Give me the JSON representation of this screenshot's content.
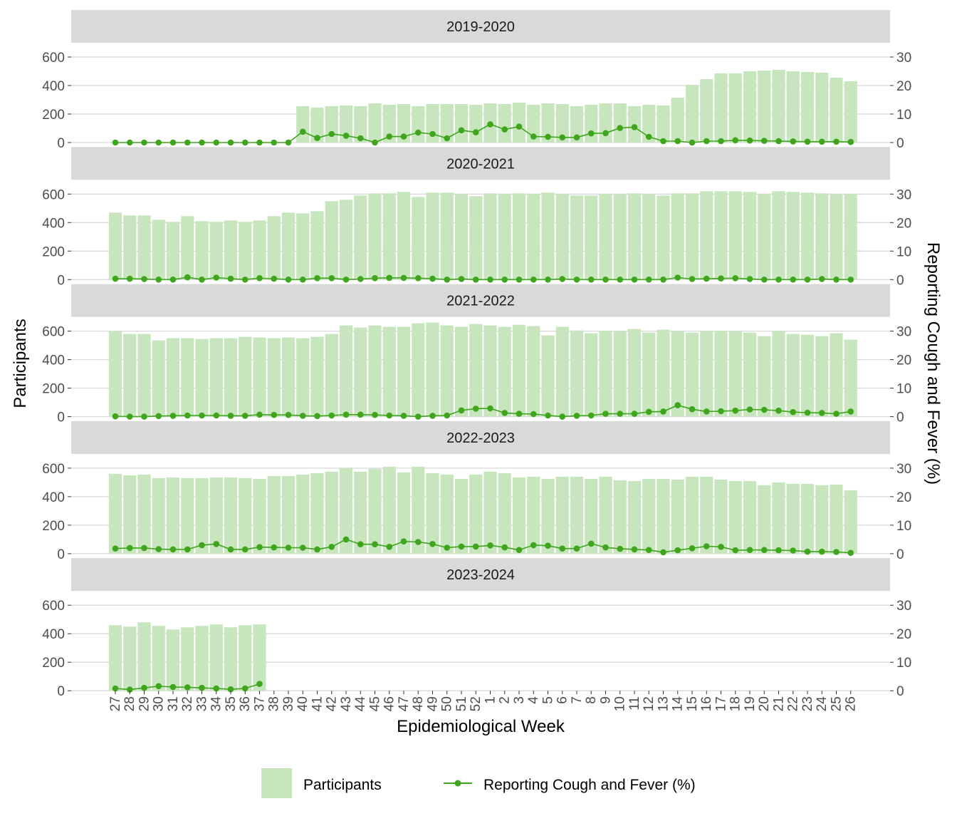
{
  "chart_data": {
    "type": "bar+line",
    "facet_label": "season",
    "x_label": "Epidemiological Week",
    "y_left_label": "Participants",
    "y_right_label": "Reporting Cough and Fever (%)",
    "y_left_ticks": [
      0,
      200,
      400,
      600
    ],
    "y_right_ticks": [
      0,
      10,
      20,
      30
    ],
    "y_left_range": [
      0,
      700
    ],
    "y_right_range": [
      0,
      35
    ],
    "weeks": [
      "27",
      "28",
      "29",
      "30",
      "31",
      "32",
      "33",
      "34",
      "35",
      "36",
      "37",
      "38",
      "39",
      "40",
      "41",
      "42",
      "43",
      "44",
      "45",
      "46",
      "47",
      "48",
      "49",
      "50",
      "51",
      "52",
      "1",
      "2",
      "3",
      "4",
      "5",
      "6",
      "7",
      "8",
      "9",
      "10",
      "11",
      "12",
      "13",
      "14",
      "15",
      "16",
      "17",
      "18",
      "19",
      "20",
      "21",
      "22",
      "23",
      "24",
      "25",
      "26"
    ],
    "legend": {
      "participants": "Participants",
      "cough_fever": "Reporting Cough and Fever (%)"
    },
    "colors": {
      "bar": "#c7e6bd",
      "line": "#3ea51c",
      "strip": "#d9d9d9",
      "grid": "#d9d9d9"
    },
    "panels": [
      {
        "season": "2019-2020",
        "participants": [
          0,
          0,
          0,
          0,
          0,
          0,
          0,
          0,
          0,
          0,
          0,
          0,
          0,
          255,
          245,
          255,
          260,
          255,
          275,
          265,
          270,
          255,
          270,
          270,
          270,
          265,
          275,
          270,
          280,
          265,
          275,
          270,
          255,
          265,
          275,
          275,
          255,
          265,
          260,
          315,
          405,
          445,
          485,
          485,
          500,
          505,
          510,
          500,
          495,
          490,
          455,
          430
        ],
        "cough_fever_pct": [
          0,
          0,
          0,
          0,
          0,
          0,
          0,
          0,
          0,
          0,
          0,
          0,
          0,
          3.8,
          1.6,
          3,
          2.4,
          1.5,
          0,
          2.1,
          2.1,
          3.5,
          3,
          1.5,
          4.3,
          3.6,
          6.4,
          4.6,
          5.6,
          2.1,
          2,
          1.8,
          1.8,
          3.2,
          3.3,
          5.1,
          5.4,
          2,
          0.5,
          0.5,
          0,
          0.5,
          0.5,
          0.8,
          0.7,
          0.6,
          0.5,
          0.4,
          0.3,
          0.3,
          0.3,
          0.2
        ]
      },
      {
        "season": "2020-2021",
        "participants": [
          470,
          450,
          450,
          420,
          405,
          445,
          410,
          405,
          415,
          405,
          415,
          445,
          470,
          465,
          480,
          550,
          560,
          590,
          605,
          605,
          615,
          580,
          610,
          610,
          600,
          585,
          605,
          600,
          605,
          600,
          610,
          600,
          590,
          590,
          600,
          600,
          605,
          600,
          590,
          605,
          605,
          620,
          620,
          620,
          615,
          600,
          620,
          615,
          610,
          605,
          600,
          600
        ],
        "cough_fever_pct": [
          0.3,
          0.3,
          0.2,
          0,
          0,
          0.8,
          0,
          0.7,
          0.3,
          0,
          0.5,
          0.3,
          0,
          0,
          0.5,
          0.5,
          0,
          0.2,
          0.5,
          0.6,
          0.6,
          0.5,
          0.3,
          0,
          0.2,
          0,
          0,
          0,
          0,
          0,
          0,
          0.2,
          0,
          0,
          0,
          0,
          0,
          0,
          0,
          0.7,
          0.2,
          0.3,
          0.4,
          0.5,
          0.2,
          0,
          0,
          0,
          0,
          0.2,
          0,
          0
        ]
      },
      {
        "season": "2021-2022",
        "participants": [
          600,
          580,
          580,
          535,
          550,
          550,
          545,
          550,
          550,
          560,
          555,
          550,
          555,
          550,
          560,
          580,
          640,
          625,
          640,
          630,
          630,
          655,
          660,
          640,
          630,
          650,
          640,
          630,
          645,
          635,
          570,
          630,
          605,
          585,
          600,
          600,
          615,
          590,
          610,
          600,
          590,
          600,
          600,
          600,
          590,
          565,
          600,
          580,
          575,
          565,
          585,
          540
        ],
        "cough_fever_pct": [
          0.1,
          0,
          0,
          0.2,
          0.3,
          0.4,
          0.4,
          0.4,
          0.3,
          0.3,
          0.7,
          0.6,
          0.6,
          0.3,
          0.2,
          0.4,
          0.7,
          0.7,
          0.6,
          0.4,
          0.3,
          0,
          0.3,
          0.4,
          2.2,
          2.8,
          2.9,
          1.3,
          1,
          0.9,
          0.4,
          0,
          0.3,
          0.4,
          1,
          1,
          1,
          1.7,
          1.8,
          4,
          2.6,
          1.8,
          1.9,
          2.1,
          2.5,
          2.4,
          2.1,
          1.6,
          1.4,
          1.3,
          1,
          1.8
        ]
      },
      {
        "season": "2022-2023",
        "participants": [
          560,
          550,
          555,
          530,
          535,
          530,
          530,
          535,
          535,
          530,
          525,
          545,
          545,
          555,
          565,
          575,
          600,
          575,
          595,
          610,
          570,
          610,
          565,
          555,
          525,
          555,
          575,
          565,
          535,
          540,
          525,
          540,
          540,
          525,
          540,
          515,
          510,
          525,
          525,
          520,
          540,
          540,
          520,
          510,
          510,
          480,
          500,
          490,
          490,
          480,
          485,
          445
        ],
        "cough_fever_pct": [
          1.8,
          2,
          2,
          1.6,
          1.5,
          1.5,
          3,
          3.4,
          1.5,
          1.5,
          2.3,
          2.2,
          2.1,
          2.1,
          1.5,
          2.4,
          5,
          3.3,
          3.3,
          2.4,
          4.3,
          4.1,
          3.4,
          2.1,
          2.5,
          2.5,
          2.9,
          2.2,
          1.3,
          3,
          2.8,
          1.8,
          1.8,
          3.5,
          2.2,
          1.7,
          1.5,
          1.3,
          0.5,
          1.2,
          1.9,
          2.6,
          2.4,
          1.2,
          1.3,
          1.3,
          1.2,
          1.1,
          0.7,
          0.7,
          0.6,
          0.3
        ]
      },
      {
        "season": "2023-2024",
        "participants": [
          460,
          450,
          480,
          455,
          430,
          445,
          455,
          465,
          445,
          460,
          465
        ],
        "cough_fever_pct": [
          0.8,
          0.4,
          1,
          1.6,
          1.3,
          1.2,
          1,
          0.8,
          0.5,
          0.8,
          2.4
        ]
      }
    ]
  }
}
